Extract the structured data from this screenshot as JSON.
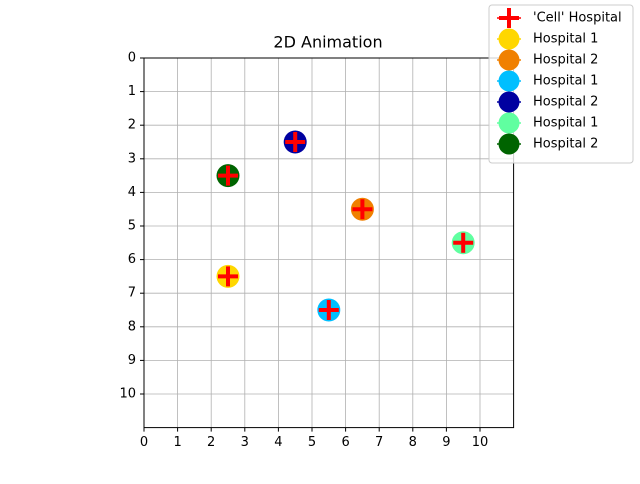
{
  "chart_data": {
    "type": "scatter",
    "title": "2D Animation",
    "xlim": [
      0,
      11
    ],
    "ylim": [
      0,
      11
    ],
    "y_inverted": true,
    "xticks": [
      0,
      1,
      2,
      3,
      4,
      5,
      6,
      7,
      8,
      9,
      10
    ],
    "yticks": [
      0,
      1,
      2,
      3,
      4,
      5,
      6,
      7,
      8,
      9,
      10
    ],
    "grid": true,
    "legend": "upper right",
    "series": [
      {
        "name": "'Cell' Hospital",
        "color": "#ff0000",
        "marker": "plus",
        "x": [
          2.5,
          6.5,
          5.5,
          4.5,
          9.5,
          2.5
        ],
        "y": [
          6.5,
          4.5,
          7.5,
          2.5,
          5.5,
          3.5
        ]
      },
      {
        "name": "Hospital 1",
        "color": "#ffd700",
        "marker": "circle",
        "x": [
          2.5
        ],
        "y": [
          6.5
        ]
      },
      {
        "name": "Hospital 2",
        "color": "#f08000",
        "marker": "circle",
        "x": [
          6.5
        ],
        "y": [
          4.5
        ]
      },
      {
        "name": "Hospital 1",
        "color": "#00bfff",
        "marker": "circle",
        "x": [
          5.5
        ],
        "y": [
          7.5
        ]
      },
      {
        "name": "Hospital 2",
        "color": "#0000a0",
        "marker": "circle",
        "x": [
          4.5
        ],
        "y": [
          2.5
        ]
      },
      {
        "name": "Hospital 1",
        "color": "#60ffa0",
        "marker": "circle",
        "x": [
          9.5
        ],
        "y": [
          5.5
        ]
      },
      {
        "name": "Hospital 2",
        "color": "#006400",
        "marker": "circle",
        "x": [
          2.5
        ],
        "y": [
          3.5
        ]
      }
    ]
  }
}
